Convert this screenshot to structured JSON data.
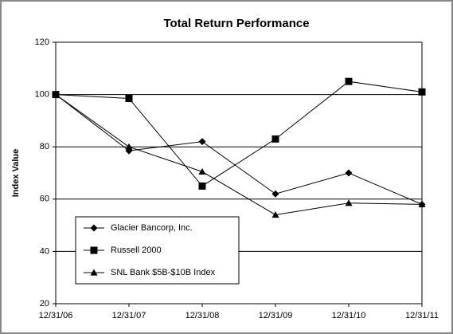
{
  "chart_data": {
    "type": "line",
    "title": "Total Return Performance",
    "y_label": "Index Value",
    "categories": [
      "12/31/06",
      "12/31/07",
      "12/31/08",
      "12/31/09",
      "12/31/10",
      "12/31/11"
    ],
    "series": [
      {
        "name": "Glacier Bancorp, Inc.",
        "color": "#000000",
        "marker": "diamond",
        "values": [
          100,
          78.5,
          82,
          62,
          70,
          58
        ]
      },
      {
        "name": "Russell 2000",
        "color": "#000000",
        "marker": "square",
        "values": [
          100,
          98.5,
          65,
          83,
          105,
          101
        ]
      },
      {
        "name": "SNL Bank $5B-$10B Index",
        "color": "#000000",
        "marker": "triangle",
        "values": [
          100,
          80,
          70.5,
          54,
          58.5,
          58
        ]
      }
    ],
    "ylim": [
      20,
      120
    ],
    "yticks": [
      20,
      40,
      60,
      80,
      100,
      120
    ],
    "grid": true,
    "legend": "lower left"
  }
}
